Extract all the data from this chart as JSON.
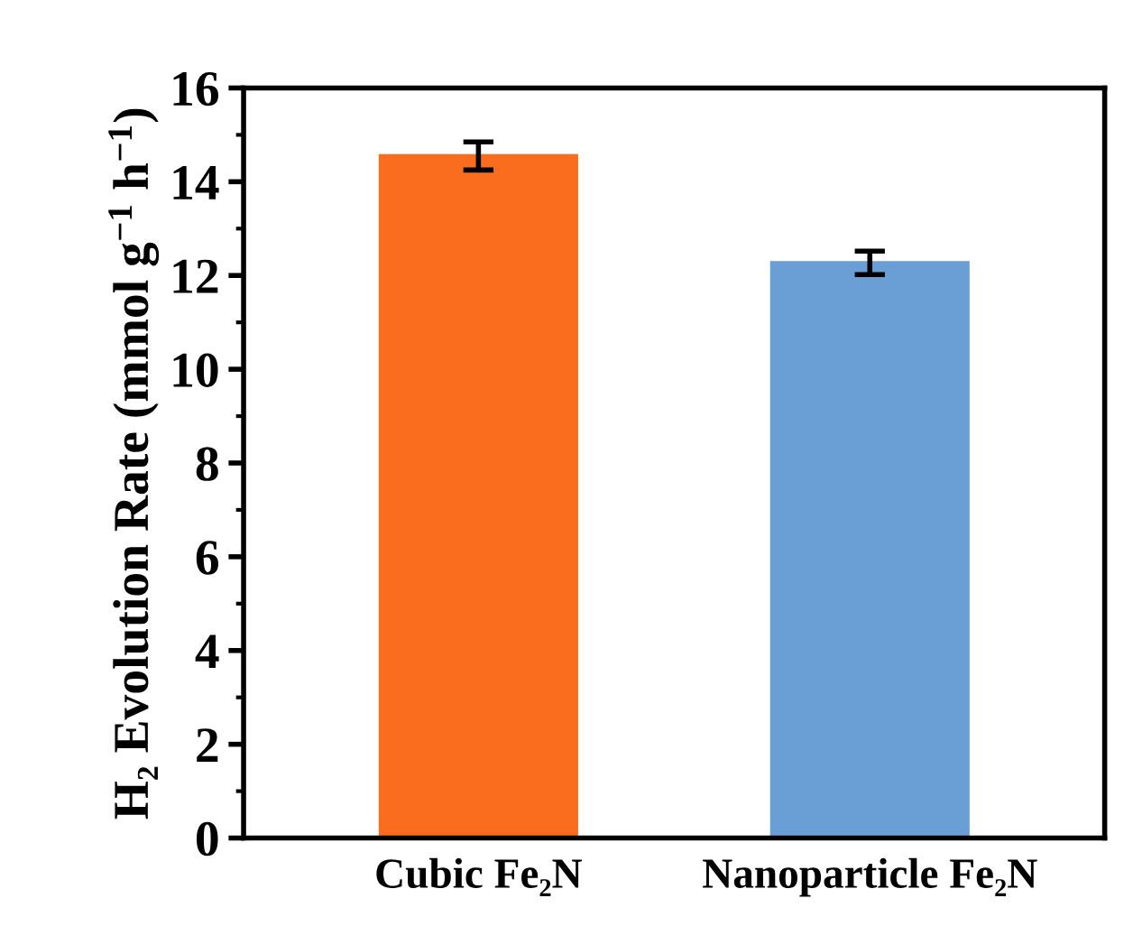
{
  "chart_data": {
    "type": "bar",
    "ylabel": "H₂ Evolution Rate (mmol g$^{−1}$ h$^{−1}$)",
    "categories": [
      "Cubic Fe₂N",
      "Nanoparticle Fe₂N"
    ],
    "values": [
      14.55,
      12.27
    ],
    "errors": [
      0.3,
      0.25
    ],
    "colors": [
      "#fa6c1e",
      "#6a9fd6"
    ],
    "ylim": [
      0,
      16
    ],
    "yticks": [
      0,
      2,
      4,
      6,
      8,
      10,
      12,
      14,
      16
    ],
    "grid": false
  }
}
